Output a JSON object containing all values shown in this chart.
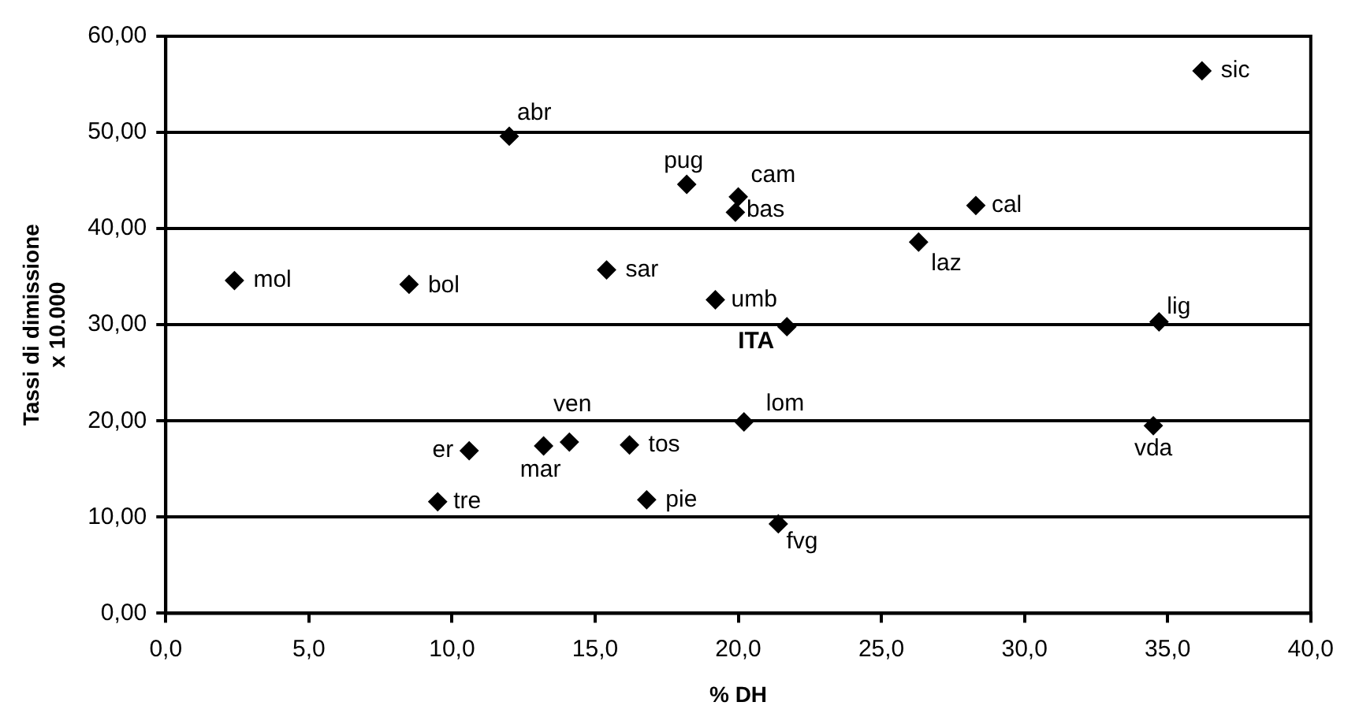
{
  "chart_data": {
    "type": "scatter",
    "xlabel": "% DH",
    "ylabel": "Tassi di dimissione x 10.000",
    "series": [
      {
        "color": "#000000",
        "x": [
          36.2,
          12.0,
          18.2,
          20.0,
          19.9,
          28.3,
          26.3,
          2.4,
          8.5,
          15.4,
          19.2,
          21.7,
          34.7,
          20.2,
          34.5,
          10.6,
          13.2,
          14.1,
          16.2,
          9.5,
          16.8,
          21.4
        ],
        "values": [
          56.4,
          49.6,
          44.6,
          43.3,
          41.7,
          42.4,
          38.6,
          34.6,
          34.2,
          35.7,
          32.6,
          29.8,
          30.3,
          19.9,
          19.5,
          16.9,
          17.4,
          17.8,
          17.5,
          11.6,
          11.8,
          9.3
        ]
      }
    ],
    "annotations": [
      {
        "text": "sic",
        "x": 36.2,
        "y": 56.4
      },
      {
        "text": "abr",
        "x": 12.0,
        "y": 49.6
      },
      {
        "text": "pug",
        "x": 18.2,
        "y": 44.6
      },
      {
        "text": "cam",
        "x": 20.0,
        "y": 43.3
      },
      {
        "text": "bas",
        "x": 19.9,
        "y": 41.7
      },
      {
        "text": "cal",
        "x": 28.3,
        "y": 42.4
      },
      {
        "text": "laz",
        "x": 26.3,
        "y": 38.6
      },
      {
        "text": "mol",
        "x": 2.4,
        "y": 34.6
      },
      {
        "text": "bol",
        "x": 8.5,
        "y": 34.2
      },
      {
        "text": "sar",
        "x": 15.4,
        "y": 35.7
      },
      {
        "text": "umb",
        "x": 19.2,
        "y": 32.6
      },
      {
        "text": "ITA",
        "x": 21.7,
        "y": 29.8
      },
      {
        "text": "lig",
        "x": 34.7,
        "y": 30.3
      },
      {
        "text": "lom",
        "x": 20.2,
        "y": 19.9
      },
      {
        "text": "vda",
        "x": 34.5,
        "y": 19.5
      },
      {
        "text": "er",
        "x": 10.6,
        "y": 16.9
      },
      {
        "text": "mar",
        "x": 13.2,
        "y": 17.4
      },
      {
        "text": "ven",
        "x": 14.1,
        "y": 17.8
      },
      {
        "text": "tos",
        "x": 16.2,
        "y": 17.5
      },
      {
        "text": "tre",
        "x": 9.5,
        "y": 11.6
      },
      {
        "text": "pie",
        "x": 16.8,
        "y": 11.8
      },
      {
        "text": "fvg",
        "x": 21.4,
        "y": 9.3
      }
    ],
    "xlim": [
      0,
      40
    ],
    "xticks": [
      {
        "value": 0,
        "label": "0,0"
      },
      {
        "value": 5,
        "label": "5,0"
      },
      {
        "value": 10,
        "label": "10,0"
      },
      {
        "value": 15,
        "label": "15,0"
      },
      {
        "value": 20,
        "label": "20,0"
      },
      {
        "value": 25,
        "label": "25,0"
      },
      {
        "value": 30,
        "label": "30,0"
      },
      {
        "value": 35,
        "label": "35,0"
      },
      {
        "value": 40,
        "label": "40,0"
      }
    ],
    "ylim": [
      0,
      60
    ],
    "yticks": [
      {
        "value": 0,
        "label": "0,00"
      },
      {
        "value": 10,
        "label": "10,00"
      },
      {
        "value": 20,
        "label": "20,00"
      },
      {
        "value": 30,
        "label": "30,00"
      },
      {
        "value": 40,
        "label": "40,00"
      },
      {
        "value": 50,
        "label": "50,00"
      },
      {
        "value": 60,
        "label": "60,00"
      }
    ],
    "grid": "y",
    "legend": false,
    "marker": "diamond"
  }
}
